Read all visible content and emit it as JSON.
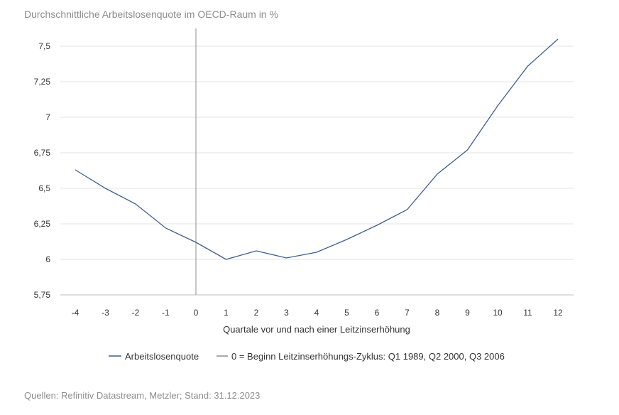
{
  "chart_data": {
    "type": "line",
    "title": "Durchschnittliche Arbeitslosenquote im OECD-Raum in %",
    "xlabel": "Quartale vor und nach einer Leitzinserhöhung",
    "ylabel": "",
    "x": [
      -4,
      -3,
      -2,
      -1,
      0,
      1,
      2,
      3,
      4,
      5,
      6,
      7,
      8,
      9,
      10,
      11,
      12
    ],
    "x_tick_labels": [
      "-4",
      "-3",
      "-2",
      "-1",
      "0",
      "1",
      "2",
      "3",
      "4",
      "5",
      "6",
      "7",
      "8",
      "9",
      "10",
      "11",
      "12"
    ],
    "y_ticks": [
      5.75,
      6,
      6.25,
      6.5,
      6.75,
      7,
      7.25,
      7.5
    ],
    "y_tick_labels": [
      "5,75",
      "6",
      "6,25",
      "6,5",
      "6,75",
      "7",
      "7,25",
      "7,5"
    ],
    "ylim": [
      5.75,
      7.5
    ],
    "grid": true,
    "series": [
      {
        "name": "Arbeitslosenquote",
        "color": "#3f5f8f",
        "values": [
          6.63,
          6.5,
          6.39,
          6.22,
          6.12,
          6.0,
          6.06,
          6.01,
          6.05,
          6.14,
          6.24,
          6.35,
          6.6,
          6.77,
          7.08,
          7.36,
          7.55
        ]
      }
    ],
    "reference_line": {
      "x": 0,
      "label": "0 = Beginn Leitzinserhöhungs-Zyklus: Q1 1989, Q2 2000, Q3 2006",
      "color": "#8c8c8c"
    },
    "legend_position": "bottom"
  },
  "source": "Quellen: Refinitiv Datastream, Metzler; Stand: 31.12.2023"
}
